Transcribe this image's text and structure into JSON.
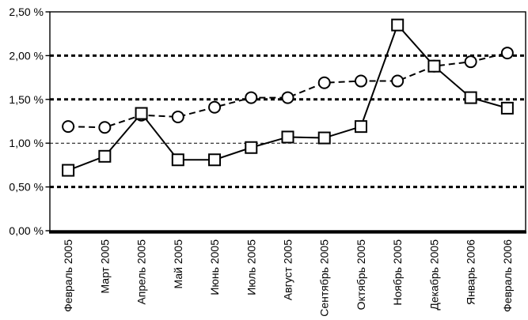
{
  "chart_data": {
    "type": "line",
    "title": "",
    "xlabel": "",
    "ylabel": "",
    "categories": [
      "Февраль 2005",
      "Март 2005",
      "Апрель 2005",
      "Май 2005",
      "Июнь 2005",
      "Июль 2005",
      "Август 2005",
      "Сентябрь 2005",
      "Октябрь 2005",
      "Ноябрь 2005",
      "Декабрь 2005",
      "Январь 2006",
      "Февраль 2006"
    ],
    "series": [
      {
        "id": "solid-square-series",
        "marker": "square",
        "line_style": "solid",
        "values": [
          0.69,
          0.85,
          1.34,
          0.81,
          0.81,
          0.95,
          1.07,
          1.06,
          1.19,
          2.35,
          1.88,
          1.52,
          1.4
        ]
      },
      {
        "id": "dashed-circle-series",
        "marker": "circle",
        "line_style": "dashed",
        "values": [
          1.19,
          1.18,
          1.32,
          1.3,
          1.41,
          1.52,
          1.52,
          1.69,
          1.71,
          1.71,
          1.88,
          1.93,
          2.03
        ]
      }
    ],
    "ylim": [
      0,
      2.5
    ],
    "y_axis": {
      "ticks": [
        {
          "value": 0.0,
          "label": "0,00 %"
        },
        {
          "value": 0.5,
          "label": "0,50 %"
        },
        {
          "value": 1.0,
          "label": "1,00 %"
        },
        {
          "value": 1.5,
          "label": "1,50 %"
        },
        {
          "value": 2.0,
          "label": "2,00 %"
        },
        {
          "value": 2.5,
          "label": "2,50 %"
        }
      ]
    },
    "gridlines": {
      "bold_dotted_values": [
        0.5,
        1.5,
        2.0
      ],
      "thin_dashed_values": [
        1.0
      ]
    },
    "legend": "none",
    "colors": {
      "stroke": "#000000",
      "background": "#ffffff",
      "marker_fill": "#ffffff"
    }
  }
}
